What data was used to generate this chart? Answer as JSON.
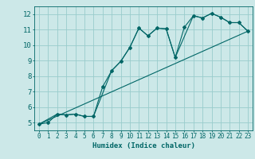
{
  "title": "",
  "xlabel": "Humidex (Indice chaleur)",
  "bg_color": "#cce8e8",
  "grid_color": "#99cccc",
  "line_color": "#006666",
  "xlim": [
    -0.5,
    23.5
  ],
  "ylim": [
    4.5,
    12.5
  ],
  "xticks": [
    0,
    1,
    2,
    3,
    4,
    5,
    6,
    7,
    8,
    9,
    10,
    11,
    12,
    13,
    14,
    15,
    16,
    17,
    18,
    19,
    20,
    21,
    22,
    23
  ],
  "yticks": [
    5,
    6,
    7,
    8,
    9,
    10,
    11,
    12
  ],
  "series1_x": [
    0,
    1,
    2,
    3,
    4,
    5,
    6,
    7,
    8,
    9,
    10,
    11,
    12,
    13,
    14,
    15,
    16,
    17,
    18,
    19,
    20,
    21,
    22,
    23
  ],
  "series1_y": [
    4.9,
    5.0,
    5.55,
    5.5,
    5.55,
    5.4,
    5.4,
    7.3,
    8.35,
    8.95,
    9.85,
    11.1,
    10.6,
    11.1,
    11.05,
    9.2,
    11.15,
    11.9,
    11.75,
    12.05,
    11.8,
    11.45,
    11.45,
    10.9
  ],
  "series2_x": [
    0,
    2,
    3,
    4,
    5,
    6,
    8,
    9,
    10,
    11,
    12,
    13,
    14,
    15,
    17,
    18,
    19,
    20,
    21,
    22,
    23
  ],
  "series2_y": [
    4.9,
    5.55,
    5.5,
    5.55,
    5.4,
    5.4,
    8.35,
    8.95,
    9.85,
    11.1,
    10.6,
    11.1,
    11.05,
    9.2,
    11.9,
    11.75,
    12.05,
    11.8,
    11.45,
    11.45,
    10.9
  ],
  "series3_x": [
    0,
    23
  ],
  "series3_y": [
    4.9,
    10.9
  ]
}
